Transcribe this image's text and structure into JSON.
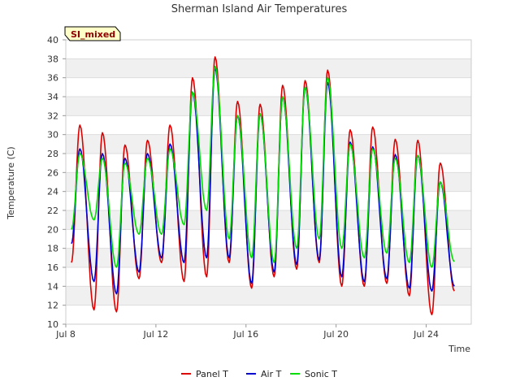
{
  "chart_data": {
    "type": "line",
    "title": "Sherman Island Air Temperatures",
    "xlabel": "Time",
    "ylabel": "Temperature (C)",
    "badge": "SI_mixed",
    "ylim": [
      10,
      40
    ],
    "yticks": [
      10,
      12,
      14,
      16,
      18,
      20,
      22,
      24,
      26,
      28,
      30,
      32,
      34,
      36,
      38,
      40
    ],
    "xlim": [
      "2024-07-08",
      "2024-07-26"
    ],
    "xticks": [
      {
        "date": "2024-07-08",
        "label": "Jul 8"
      },
      {
        "date": "2024-07-12",
        "label": "Jul 12"
      },
      {
        "date": "2024-07-16",
        "label": "Jul 16"
      },
      {
        "date": "2024-07-20",
        "label": "Jul 20"
      },
      {
        "date": "2024-07-24",
        "label": "Jul 24"
      }
    ],
    "grid": true,
    "legend_position": "bottom",
    "series": [
      {
        "name": "Panel T",
        "color": "#dd0000",
        "x": [
          "2024-07-08 06:00",
          "2024-07-08 15:00",
          "2024-07-09 06:00",
          "2024-07-09 15:00",
          "2024-07-10 06:00",
          "2024-07-10 15:00",
          "2024-07-11 06:00",
          "2024-07-11 15:00",
          "2024-07-12 06:00",
          "2024-07-12 15:00",
          "2024-07-13 06:00",
          "2024-07-13 15:00",
          "2024-07-14 06:00",
          "2024-07-14 15:00",
          "2024-07-15 06:00",
          "2024-07-15 15:00",
          "2024-07-16 06:00",
          "2024-07-16 15:00",
          "2024-07-17 06:00",
          "2024-07-17 15:00",
          "2024-07-18 06:00",
          "2024-07-18 15:00",
          "2024-07-19 06:00",
          "2024-07-19 15:00",
          "2024-07-20 06:00",
          "2024-07-20 15:00",
          "2024-07-21 06:00",
          "2024-07-21 15:00",
          "2024-07-22 06:00",
          "2024-07-22 15:00",
          "2024-07-23 06:00",
          "2024-07-23 15:00",
          "2024-07-24 06:00",
          "2024-07-24 15:00",
          "2024-07-25 06:00",
          "2024-07-25 15:00",
          "2024-07-25 22:00"
        ],
        "y": [
          16.5,
          31.0,
          11.5,
          30.2,
          11.3,
          28.9,
          14.8,
          29.4,
          16.5,
          31.0,
          14.5,
          36.0,
          15.0,
          38.2,
          16.5,
          33.5,
          13.8,
          33.2,
          15.0,
          35.2,
          15.8,
          35.7,
          16.5,
          36.8,
          14.0,
          30.5,
          14.0,
          30.8,
          14.3,
          29.5,
          13.0,
          29.4,
          11.0,
          27.0,
          13.5,
          null,
          null
        ]
      },
      {
        "name": "Air T",
        "color": "#0000cc",
        "x": [
          "2024-07-08 06:00",
          "2024-07-08 15:00",
          "2024-07-09 06:00",
          "2024-07-09 15:00",
          "2024-07-10 06:00",
          "2024-07-10 15:00",
          "2024-07-11 06:00",
          "2024-07-11 15:00",
          "2024-07-12 06:00",
          "2024-07-12 15:00",
          "2024-07-13 06:00",
          "2024-07-13 15:00",
          "2024-07-14 06:00",
          "2024-07-14 15:00",
          "2024-07-15 06:00",
          "2024-07-15 15:00",
          "2024-07-16 06:00",
          "2024-07-16 15:00",
          "2024-07-17 06:00",
          "2024-07-17 15:00",
          "2024-07-18 06:00",
          "2024-07-18 15:00",
          "2024-07-19 06:00",
          "2024-07-19 15:00",
          "2024-07-20 06:00",
          "2024-07-20 15:00",
          "2024-07-21 06:00",
          "2024-07-21 15:00",
          "2024-07-22 06:00",
          "2024-07-22 15:00",
          "2024-07-23 06:00",
          "2024-07-23 15:00",
          "2024-07-24 06:00",
          "2024-07-24 15:00",
          "2024-07-25 06:00",
          "2024-07-25 15:00",
          "2024-07-25 22:00"
        ],
        "y": [
          18.5,
          28.5,
          14.5,
          28.0,
          13.2,
          27.5,
          15.5,
          28.0,
          17.0,
          29.0,
          16.5,
          34.5,
          17.0,
          37.0,
          17.0,
          32.0,
          14.3,
          32.2,
          15.5,
          34.0,
          16.3,
          35.0,
          16.8,
          35.5,
          15.0,
          29.2,
          14.5,
          28.7,
          14.8,
          27.9,
          13.8,
          27.8,
          13.5,
          25.0,
          14.0,
          null,
          null
        ]
      },
      {
        "name": "Sonic T",
        "color": "#00dd00",
        "x": [
          "2024-07-08 06:00",
          "2024-07-08 15:00",
          "2024-07-09 06:00",
          "2024-07-09 15:00",
          "2024-07-10 06:00",
          "2024-07-10 15:00",
          "2024-07-11 06:00",
          "2024-07-11 15:00",
          "2024-07-12 06:00",
          "2024-07-12 15:00",
          "2024-07-13 06:00",
          "2024-07-13 15:00",
          "2024-07-14 06:00",
          "2024-07-14 15:00",
          "2024-07-15 06:00",
          "2024-07-15 15:00",
          "2024-07-16 06:00",
          "2024-07-16 15:00",
          "2024-07-17 06:00",
          "2024-07-17 15:00",
          "2024-07-18 06:00",
          "2024-07-18 15:00",
          "2024-07-19 06:00",
          "2024-07-19 15:00",
          "2024-07-20 06:00",
          "2024-07-20 15:00",
          "2024-07-21 06:00",
          "2024-07-21 15:00",
          "2024-07-22 06:00",
          "2024-07-22 15:00",
          "2024-07-23 06:00",
          "2024-07-23 15:00",
          "2024-07-24 06:00",
          "2024-07-24 15:00",
          "2024-07-25 06:00",
          "2024-07-25 15:00",
          "2024-07-25 22:00"
        ],
        "y": [
          20.0,
          28.0,
          21.0,
          27.5,
          16.0,
          27.0,
          19.5,
          27.5,
          19.5,
          28.5,
          20.5,
          34.5,
          22.0,
          37.2,
          19.0,
          32.0,
          17.0,
          32.2,
          16.5,
          34.0,
          18.0,
          35.0,
          19.0,
          36.0,
          18.0,
          29.0,
          17.0,
          28.5,
          17.5,
          27.5,
          16.5,
          27.8,
          16.0,
          25.0,
          16.6,
          null,
          null
        ]
      }
    ]
  }
}
